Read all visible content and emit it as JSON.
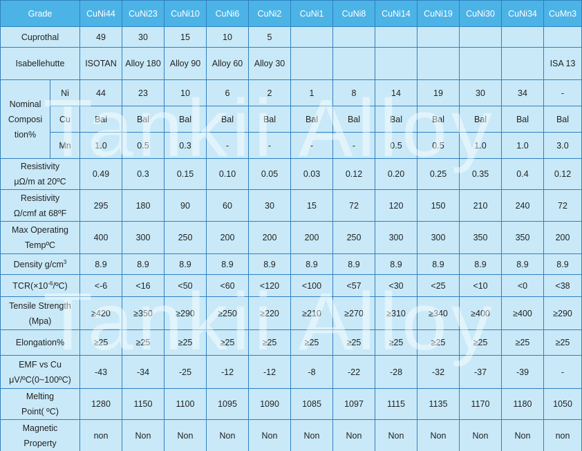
{
  "watermark": "Tankii Alloy",
  "table": {
    "header": [
      "Grade",
      "CuNi44",
      "CuNi23",
      "CuNi10",
      "CuNi6",
      "CuNi2",
      "CuNi1",
      "CuNi8",
      "CuNi14",
      "CuNi19",
      "CuNi30",
      "CuNi34",
      "CuMn3"
    ],
    "rows": [
      {
        "label": [
          "Cuprothal"
        ],
        "cells": [
          "49",
          "30",
          "15",
          "10",
          "5",
          null,
          null,
          null,
          null,
          null,
          null,
          null
        ]
      },
      {
        "label": [
          "Isabellehutte"
        ],
        "cells": [
          "ISOTAN",
          "Alloy 180",
          "Alloy 90",
          "Alloy 60",
          "Alloy 30",
          null,
          null,
          null,
          null,
          null,
          null,
          "ISA 13"
        ]
      },
      {
        "label": [
          "Nominal",
          "Composi",
          "tion%"
        ],
        "sub": [
          {
            "element": "Ni",
            "cells": [
              "44",
              "23",
              "10",
              "6",
              "2",
              "1",
              "8",
              "14",
              "19",
              "30",
              "34",
              "-"
            ]
          },
          {
            "element": "Cu",
            "cells": [
              "Bal",
              "Bal",
              "Bal",
              "Bal",
              "Bal",
              "Bal",
              "Bal",
              "Bal",
              "Bal",
              "Bal",
              "Bal",
              "Bal"
            ]
          },
          {
            "element": "Mn",
            "cells": [
              "1.0",
              "0.5",
              "0.3",
              "-",
              "-",
              "-",
              "-",
              "0.5",
              "0.5",
              "1.0",
              "1.0",
              "3.0"
            ]
          }
        ]
      },
      {
        "label": [
          "Resistivity",
          "μΩ/m at 20ºC"
        ],
        "cells": [
          "0.49",
          "0.3",
          "0.15",
          "0.10",
          "0.05",
          "0.03",
          "0.12",
          "0.20",
          "0.25",
          "0.35",
          "0.4",
          "0.12"
        ]
      },
      {
        "label": [
          "Resistivity",
          "Ω/cmf at 68ºF"
        ],
        "cells": [
          "295",
          "180",
          "90",
          "60",
          "30",
          "15",
          "72",
          "120",
          "150",
          "210",
          "240",
          "72"
        ]
      },
      {
        "label": [
          "Max Operating",
          "TempºC"
        ],
        "cells": [
          "400",
          "300",
          "250",
          "200",
          "200",
          "200",
          "250",
          "300",
          "300",
          "350",
          "350",
          "200"
        ]
      },
      {
        "label": [
          [
            {
              "text": "Density g/cm"
            },
            {
              "sup": "3"
            }
          ]
        ],
        "cells": [
          "8.9",
          "8.9",
          "8.9",
          "8.9",
          "8.9",
          "8.9",
          "8.9",
          "8.9",
          "8.9",
          "8.9",
          "8.9",
          "8.9"
        ]
      },
      {
        "label": [
          [
            {
              "text": "TCR(×10"
            },
            {
              "sup": "-6"
            },
            {
              "text": "/ºC)"
            }
          ]
        ],
        "cells": [
          "<-6",
          "<16",
          "<50",
          "<60",
          "<120",
          "<100",
          "<57",
          "<30",
          "<25",
          "<10",
          "<0",
          "<38"
        ]
      },
      {
        "label": [
          "Tensile Strength",
          "(Mpa)"
        ],
        "cells": [
          "≥420",
          "≥350",
          "≥290",
          "≥250",
          "≥220",
          "≥210",
          "≥270",
          "≥310",
          "≥340",
          "≥400",
          "≥400",
          "≥290"
        ]
      },
      {
        "label": [
          "Elongation%"
        ],
        "cells": [
          "≥25",
          "≥25",
          "≥25",
          "≥25",
          "≥25",
          "≥25",
          "≥25",
          "≥25",
          "≥25",
          "≥25",
          "≥25",
          "≥25"
        ]
      },
      {
        "label": [
          "EMF vs Cu",
          "μV/ºC(0~100ºC)"
        ],
        "cells": [
          "-43",
          "-34",
          "-25",
          "-12",
          "-12",
          "-8",
          "-22",
          "-28",
          "-32",
          "-37",
          "-39",
          "-"
        ]
      },
      {
        "label": [
          "Melting",
          "Point( ºC)"
        ],
        "cells": [
          "1280",
          "1150",
          "1100",
          "1095",
          "1090",
          "1085",
          "1097",
          "1115",
          "1135",
          "1170",
          "1180",
          "1050"
        ]
      },
      {
        "label": [
          "Magnetic",
          "Property"
        ],
        "cells": [
          "non",
          "Non",
          "Non",
          "Non",
          "Non",
          "Non",
          "Non",
          "Non",
          "Non",
          "Non",
          "Non",
          "non"
        ]
      }
    ]
  }
}
